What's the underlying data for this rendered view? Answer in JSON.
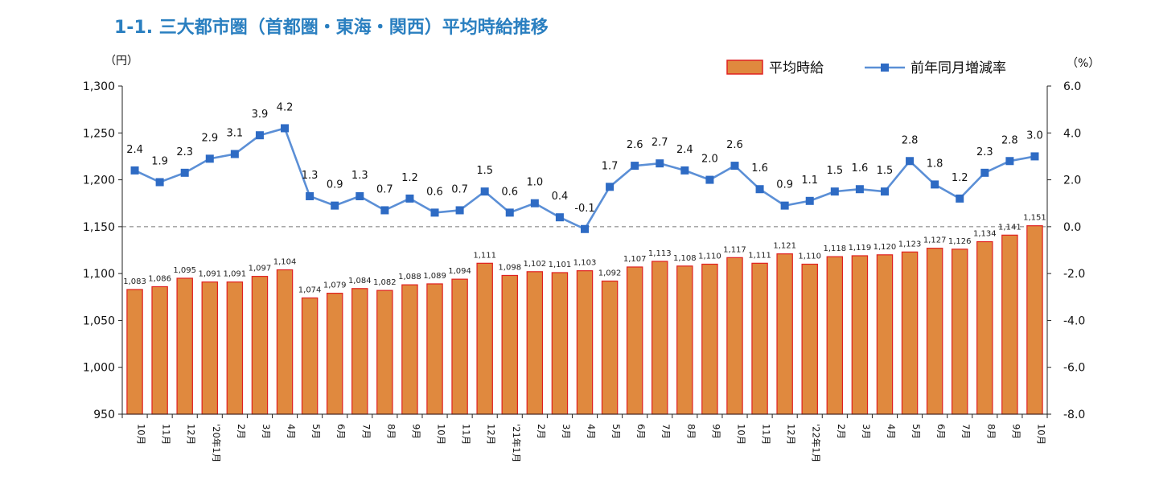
{
  "page": {
    "title": "1-1. 三大都市圏（首都圏・東海・関西）平均時給推移"
  },
  "chart_data": {
    "type": "bar",
    "title": "1-1. 三大都市圏（首都圏・東海・関西）平均時給推移",
    "left_axis_unit": "（円）",
    "right_axis_unit": "（%）",
    "y_left": {
      "min": 950,
      "max": 1300,
      "step": 50,
      "ticks": [
        "950",
        "1,000",
        "1,050",
        "1,100",
        "1,150",
        "1,200",
        "1,250",
        "1,300"
      ]
    },
    "y_right": {
      "min": -8,
      "max": 6,
      "step": 2,
      "ticks": [
        "-8.0",
        "-6.0",
        "-4.0",
        "-2.0",
        "0.0",
        "2.0",
        "4.0",
        "6.0"
      ]
    },
    "categories": [
      "10月",
      "11月",
      "12月",
      "'20年1月",
      "2月",
      "3月",
      "4月",
      "5月",
      "6月",
      "7月",
      "8月",
      "9月",
      "10月",
      "11月",
      "12月",
      "'21年1月",
      "2月",
      "3月",
      "4月",
      "5月",
      "6月",
      "7月",
      "8月",
      "9月",
      "10月",
      "11月",
      "12月",
      "'22年1月",
      "2月",
      "3月",
      "4月",
      "5月",
      "6月",
      "7月",
      "8月",
      "9月",
      "10月"
    ],
    "series": [
      {
        "name": "平均時給",
        "type": "bar",
        "axis": "left",
        "color": "#e0893e",
        "edge_color": "#e02020",
        "values": [
          1083,
          1086,
          1095,
          1091,
          1091,
          1097,
          1104,
          1074,
          1079,
          1084,
          1082,
          1088,
          1089,
          1094,
          1111,
          1098,
          1102,
          1101,
          1103,
          1092,
          1107,
          1113,
          1108,
          1110,
          1117,
          1111,
          1121,
          1110,
          1118,
          1119,
          1120,
          1123,
          1127,
          1126,
          1134,
          1141,
          1151
        ],
        "labels": [
          "1,083",
          "1,086",
          "1,095",
          "1,091",
          "1,091",
          "1,097",
          "1,104",
          "1,074",
          "1,079",
          "1,084",
          "1,082",
          "1,088",
          "1,089",
          "1,094",
          "1,111",
          "1,098",
          "1,102",
          "1,101",
          "1,103",
          "1,092",
          "1,107",
          "1,113",
          "1,108",
          "1,110",
          "1,117",
          "1,111",
          "1,121",
          "1,110",
          "1,118",
          "1,119",
          "1,120",
          "1,123",
          "1,127",
          "1,126",
          "1,134",
          "1,141",
          "1,151"
        ]
      },
      {
        "name": "前年同月増減率",
        "type": "line",
        "axis": "right",
        "color": "#5b8fd6",
        "marker_color": "#2e6bc4",
        "values": [
          2.4,
          1.9,
          2.3,
          2.9,
          3.1,
          3.9,
          4.2,
          1.3,
          0.9,
          1.3,
          0.7,
          1.2,
          0.6,
          0.7,
          1.5,
          0.6,
          1.0,
          0.4,
          -0.1,
          1.7,
          2.6,
          2.7,
          2.4,
          2.0,
          2.6,
          1.6,
          0.9,
          1.1,
          1.5,
          1.6,
          1.5,
          2.8,
          1.8,
          1.2,
          2.3,
          2.8,
          3.0
        ],
        "labels": [
          "2.4",
          "1.9",
          "2.3",
          "2.9",
          "3.1",
          "3.9",
          "4.2",
          "1.3",
          "0.9",
          "1.3",
          "0.7",
          "1.2",
          "0.6",
          "0.7",
          "1.5",
          "0.6",
          "1.0",
          "0.4",
          "-0.1",
          "1.7",
          "2.6",
          "2.7",
          "2.4",
          "2.0",
          "2.6",
          "1.6",
          "0.9",
          "1.1",
          "1.5",
          "1.6",
          "1.5",
          "2.8",
          "1.8",
          "1.2",
          "2.3",
          "2.8",
          "3.0"
        ]
      }
    ],
    "zero_line": "dashed",
    "legend_position": "top-right",
    "grid": false
  }
}
